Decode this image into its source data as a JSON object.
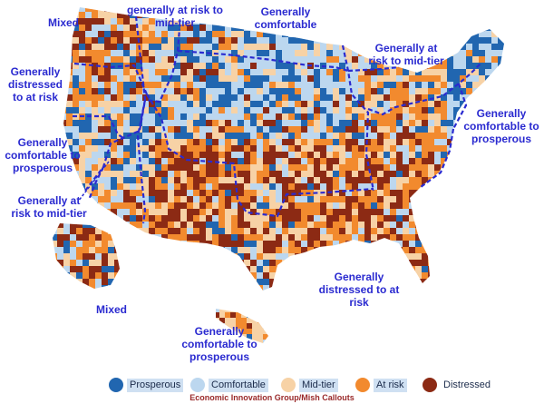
{
  "colors": {
    "prosperous": "#2166b0",
    "comfortable": "#bcd7ef",
    "mid_tier": "#f7d2a6",
    "at_risk": "#f28a2e",
    "distressed": "#8c2a14",
    "label": "#2a2ad0",
    "boundary": "#2a2ad0"
  },
  "region_labels": {
    "mixed_nw": "Mixed",
    "generally_at_risk_to_mid_tier_north": "generally at risk to\nmid-tier",
    "generally_comfortable_north": "Generally\ncomfortable",
    "generally_at_risk_to_mid_tier_midwest": "Generally at\nrisk to mid-tier",
    "generally_distressed_to_at_risk_west": "Generally\ndistressed\nto at risk",
    "generally_comfortable_to_prosperous_west": "Generally\ncomfortable to\nprosperous",
    "generally_comfortable_to_prosperous_east": "Generally\ncomfortable to\nprosperous",
    "generally_at_risk_to_mid_tier_sw": "Generally at\nrisk to mid-tier",
    "generally_distressed_to_at_risk_south": "Generally\ndistressed to at\nrisk",
    "mixed_alaska": "Mixed",
    "generally_comfortable_to_prosperous_hawaii": "Generally\ncomfortable to\nprosperous"
  },
  "legend": [
    {
      "key": "prosperous",
      "label": "Prosperous",
      "icon": "circle-swatch",
      "highlight": true
    },
    {
      "key": "comfortable",
      "label": "Comfortable",
      "icon": "circle-swatch",
      "highlight": true
    },
    {
      "key": "mid_tier",
      "label": "Mid-tier",
      "icon": "circle-swatch",
      "highlight": true
    },
    {
      "key": "at_risk",
      "label": "At risk",
      "icon": "circle-swatch",
      "highlight": true
    },
    {
      "key": "distressed",
      "label": "Distressed",
      "icon": "circle-swatch",
      "highlight": false
    }
  ],
  "source": "Economic Innovation Group/Mish Callouts"
}
